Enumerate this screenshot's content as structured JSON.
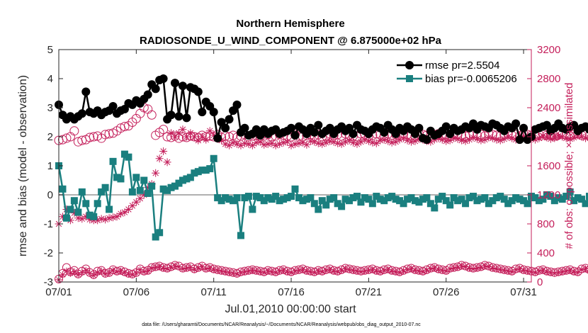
{
  "colors": {
    "rmse": "#000000",
    "bias": "#1a7f7f",
    "obs": "#c41e5a",
    "zero": "#b0b0b0",
    "axis": "#262626"
  },
  "chart_data": {
    "type": "line",
    "title_line1": "Northern Hemisphere",
    "title_line2": "RADIOSONDE_U_WIND_COMPONENT @ 6.875000e+02 hPa",
    "xlabel": "Jul.01,2010 00:00:00 start",
    "ylabel": "rmse and bias (model - observation)",
    "ylabel_right": "# of obs: o=possible; ×=assimilated",
    "ylim": [
      -3,
      5
    ],
    "ylim_right": [
      0,
      3200
    ],
    "xlim": [
      0,
      30.5
    ],
    "x_ticks": [
      0,
      5,
      10,
      15,
      20,
      25,
      30
    ],
    "x_tick_labels": [
      "07/01",
      "07/06",
      "07/11",
      "07/16",
      "07/21",
      "07/26",
      "07/31"
    ],
    "y_ticks": [
      -3,
      -2,
      -1,
      0,
      1,
      2,
      3,
      4,
      5
    ],
    "y_tick_labels": [
      "-3",
      "-2",
      "-1",
      "0",
      "1",
      "2",
      "3",
      "4",
      "5"
    ],
    "y_ticks_right": [
      0,
      400,
      800,
      1200,
      1600,
      2000,
      2400,
      2800,
      3200
    ],
    "y_tick_labels_right": [
      "0",
      "400",
      "800",
      "1200",
      "1600",
      "2000",
      "2400",
      "2800",
      "3200"
    ],
    "legend": [
      {
        "name": "rmse",
        "label": "rmse pr=2.5504"
      },
      {
        "name": "bias",
        "label": "bias pr=-0.0065206"
      }
    ],
    "x_step_days": 0.25,
    "series": [
      {
        "name": "rmse",
        "axis": "left",
        "marker": "filled-circle",
        "values": [
          3.1,
          2.75,
          2.6,
          2.7,
          2.6,
          2.7,
          2.8,
          3.55,
          2.85,
          2.8,
          2.9,
          2.75,
          2.85,
          2.9,
          3.05,
          2.8,
          2.9,
          2.95,
          3.15,
          3.1,
          3.25,
          3.15,
          3.3,
          3.45,
          3.8,
          3.65,
          3.95,
          4.0,
          2.6,
          2.75,
          3.85,
          2.7,
          3.75,
          2.65,
          3.7,
          3.65,
          3.55,
          2.85,
          3.2,
          3.05,
          2.85,
          1.95,
          2.5,
          2.3,
          2.6,
          2.9,
          3.1,
          2.15,
          2.3,
          2.05,
          2.1,
          2.25,
          2.05,
          2.25,
          2.1,
          2.2,
          2.25,
          2.1,
          2.15,
          2.2,
          2.3,
          2.05,
          2.35,
          2.25,
          2.1,
          2.3,
          2.15,
          2.4,
          2.1,
          2.2,
          2.3,
          2.1,
          2.25,
          2.35,
          2.2,
          2.3,
          2.1,
          2.4,
          2.25,
          2.2,
          2.1,
          2.25,
          2.35,
          2.3,
          2.15,
          2.4,
          2.25,
          2.1,
          2.3,
          2.2,
          2.35,
          2.25,
          2.1,
          2.3,
          1.95,
          1.9,
          2.2,
          2.05,
          2.1,
          2.2,
          2.35,
          2.1,
          2.3,
          2.2,
          2.25,
          2.35,
          2.3,
          2.45,
          2.25,
          2.4,
          2.35,
          2.3,
          2.45,
          2.4,
          2.3,
          2.2,
          2.35,
          2.3,
          2.45,
          1.9,
          2.3,
          1.9,
          2.0,
          2.25,
          2.3,
          2.35,
          2.4,
          2.2,
          2.3,
          2.45,
          2.3,
          2.25,
          2.35,
          2.4,
          2.2,
          2.3,
          2.35,
          2.25,
          2.3,
          2.15,
          2.2,
          2.35,
          2.3,
          2.25,
          2.35,
          2.4,
          2.25,
          2.3,
          2.4,
          2.3,
          2.2,
          2.35,
          2.3,
          2.1,
          2.25,
          2.3,
          2.35,
          2.25,
          2.3,
          2.25,
          2.15,
          2.3,
          2.25,
          2.2,
          2.35,
          2.25,
          2.3,
          2.3,
          2.25,
          2.1,
          2.3,
          2.25,
          2.2
        ]
      },
      {
        "name": "bias",
        "axis": "left",
        "marker": "filled-square",
        "values": [
          1.0,
          0.2,
          -0.8,
          -0.5,
          -0.2,
          -0.6,
          0.1,
          -0.3,
          -0.7,
          -0.75,
          -0.3,
          0.1,
          0.25,
          -0.5,
          1.15,
          0.6,
          0.55,
          1.4,
          1.3,
          0.1,
          0.6,
          0.15,
          0.5,
          0.05,
          0.3,
          -1.45,
          -1.3,
          0.2,
          0.15,
          0.25,
          0.3,
          0.4,
          0.5,
          0.55,
          0.6,
          0.75,
          0.8,
          0.85,
          0.85,
          0.9,
          1.25,
          -0.1,
          -0.2,
          -0.1,
          -0.15,
          -0.2,
          -0.1,
          -1.4,
          -0.1,
          -0.05,
          -0.5,
          -0.05,
          -0.1,
          -0.2,
          -0.1,
          -0.15,
          -0.05,
          -0.2,
          -0.15,
          -0.1,
          -0.05,
          0.2,
          -0.1,
          -0.2,
          -0.15,
          -0.1,
          -0.3,
          -0.5,
          -0.2,
          -0.35,
          -0.15,
          -0.1,
          -0.3,
          -0.4,
          -0.15,
          -0.2,
          -0.1,
          -0.05,
          -0.25,
          -0.1,
          -0.15,
          -0.3,
          -0.05,
          -0.15,
          -0.2,
          -0.1,
          -0.05,
          -0.15,
          -0.2,
          -0.3,
          -0.15,
          -0.1,
          -0.2,
          -0.25,
          -0.15,
          -0.1,
          -0.3,
          -0.45,
          -0.15,
          -0.05,
          -0.2,
          -0.35,
          -0.1,
          -0.2,
          -0.15,
          -0.3,
          -0.1,
          -0.05,
          -0.2,
          -0.15,
          -0.1,
          -0.3,
          -0.2,
          -0.1,
          -0.05,
          -0.15,
          -0.3,
          -0.2,
          -0.1,
          -0.15,
          -0.2,
          -0.3,
          -0.05,
          -0.1,
          -0.2,
          -0.15,
          0.0,
          -0.05,
          -0.2,
          -0.1,
          -0.15,
          -0.05,
          0.1,
          -0.2,
          -0.1,
          -0.15,
          -0.3,
          -0.05,
          -0.15,
          -0.1,
          0.0,
          0.35,
          -0.1,
          -0.25,
          -0.1,
          -0.2,
          -0.15,
          -0.05,
          -0.1,
          -0.3,
          -0.15,
          -0.25,
          -0.05,
          -0.15,
          -0.1,
          -0.2,
          -0.5,
          -0.15,
          -0.2,
          -0.05,
          0.1,
          0.15,
          -0.05,
          -0.1,
          -0.2,
          -0.1,
          -0.5,
          0.2,
          0.35,
          0.0,
          0.1,
          0.05,
          0.0,
          -0.05,
          -0.1,
          -0.15
        ]
      },
      {
        "name": "obs_possible",
        "axis": "right",
        "marker": "open-circle",
        "values": [
          1950,
          1960,
          1980,
          2000,
          2080,
          1930,
          1950,
          1960,
          1990,
          2000,
          2010,
          1980,
          2030,
          2040,
          2050,
          2080,
          2120,
          2140,
          2150,
          2200,
          2250,
          2320,
          2400,
          2380,
          2300,
          2020,
          2060,
          2100,
          2000,
          1990,
          2010,
          1980,
          2000,
          1990,
          2010,
          2000,
          1990,
          2020,
          2000,
          2010,
          2000,
          2030,
          1990,
          2010,
          2000,
          2020,
          1990,
          2010,
          2030,
          2000,
          2010,
          2020,
          2000,
          2010,
          2030,
          2000,
          2010,
          2030,
          2020,
          2010,
          2000,
          2030,
          2010,
          2000,
          2020,
          2030,
          2010,
          2030,
          2000,
          2010,
          2040,
          2020,
          2030,
          2010,
          2040,
          2020,
          2010,
          2000,
          2040,
          2030,
          2010,
          2020,
          2040,
          2030,
          2010,
          2040,
          2020,
          2030,
          2010,
          2040,
          2030,
          2020,
          2010,
          2040,
          2030,
          2020,
          2010,
          2030,
          2040,
          2020,
          2030,
          2010,
          2040,
          2030,
          2020,
          2010,
          2030,
          2040,
          2020,
          2030,
          2010,
          2040,
          2030,
          2020,
          2010,
          2030,
          2040,
          2020,
          2030,
          2010,
          2040,
          2030,
          2020,
          2010,
          2030,
          2040,
          2020,
          2030,
          2010,
          2040,
          2030,
          2020,
          2010,
          2030,
          2040,
          2020,
          2030,
          2010,
          2040,
          2030,
          2020,
          2010,
          2030,
          2040,
          2020,
          2030,
          2010,
          2040,
          2030,
          2020,
          2010,
          2030,
          2040,
          2020,
          2030,
          2010,
          2040,
          2030,
          2020,
          2010,
          2030,
          2040,
          2020,
          2030,
          2010,
          2040,
          2030,
          2020,
          2010,
          2030,
          2040,
          2020,
          2030,
          2010,
          2040,
          2030,
          2020
        ]
      },
      {
        "name": "obs_assimilated",
        "axis": "right",
        "marker": "asterisk",
        "values": [
          800,
          900,
          1000,
          850,
          950,
          880,
          870,
          900,
          860,
          850,
          850,
          870,
          860,
          880,
          890,
          900,
          940,
          960,
          1000,
          1050,
          1100,
          1150,
          1200,
          1300,
          1350,
          1500,
          1700,
          1800,
          1650,
          2050,
          2000,
          2050,
          2100,
          2000,
          2050,
          2000,
          1950,
          2000,
          1960,
          2080,
          2020,
          1970,
          1950,
          1900,
          1880,
          1920,
          1900,
          1880,
          1910,
          1900,
          1880,
          1920,
          1930,
          1890,
          1900,
          1910,
          1880,
          1900,
          1920,
          1930,
          1880,
          1900,
          1910,
          1920,
          1890,
          1940,
          1930,
          1910,
          1900,
          1920,
          1940,
          1930,
          1910,
          1900,
          1930,
          1950,
          1920,
          1900,
          1930,
          1960,
          1940,
          1920,
          1910,
          1950,
          1960,
          1940,
          1920,
          1930,
          1960,
          1980,
          1950,
          1930,
          1940,
          1970,
          1960,
          1940,
          1930,
          1960,
          1980,
          1960,
          1940,
          1950,
          1980,
          1970,
          1950,
          1940,
          1960,
          1990,
          1970,
          1950,
          1960,
          1990,
          1980,
          1960,
          1950,
          1970,
          2000,
          1980,
          1960,
          1970,
          2000,
          1990,
          1970,
          1960,
          1980,
          2010,
          1990,
          1970,
          1980,
          2010,
          2000,
          1980,
          1970,
          1990,
          2020,
          2000,
          1980,
          1990,
          2020,
          2010,
          1990,
          1980,
          2000,
          2030,
          2010,
          1990,
          2000,
          2030,
          2020,
          2000,
          1990,
          2010,
          2040,
          2020,
          2000,
          2010,
          2040,
          2030,
          2010,
          2000,
          2020,
          2050,
          2030,
          2010,
          2020,
          2050,
          2040,
          2020,
          2010,
          2030,
          1960,
          1980,
          1990,
          2000,
          2010,
          2020
        ]
      },
      {
        "name": "obs_possible_low",
        "axis": "right",
        "marker": "open-circle",
        "values": [
          40,
          120,
          200,
          140,
          160,
          110,
          150,
          180,
          130,
          100,
          150,
          160,
          120,
          130,
          170,
          150,
          160,
          140,
          120,
          110,
          130,
          180,
          150,
          160,
          200,
          210,
          220,
          200,
          190,
          210,
          230,
          220,
          190,
          200,
          210,
          180,
          200,
          220,
          190,
          200,
          180,
          170,
          160,
          150,
          140,
          130,
          120,
          140,
          150,
          160,
          170,
          160,
          150,
          140,
          160,
          150,
          140,
          160,
          170,
          150,
          140,
          160,
          170,
          180,
          160,
          150,
          140,
          160,
          150,
          170,
          180,
          160,
          150,
          170,
          190,
          180,
          170,
          160,
          150,
          160,
          170,
          180,
          160,
          150,
          170,
          180,
          160,
          150,
          140,
          160,
          180,
          190,
          170,
          160,
          150,
          170,
          190,
          200,
          180,
          170,
          160,
          190,
          200,
          210,
          230,
          220,
          200,
          190,
          200,
          210,
          230,
          220,
          200,
          190,
          180,
          170,
          160,
          150,
          180,
          190,
          170,
          160,
          150,
          140,
          160,
          170,
          150,
          140,
          130,
          140,
          150,
          160,
          170,
          150,
          140,
          180,
          190,
          170,
          160,
          150,
          170,
          180,
          160,
          150,
          140,
          160,
          170,
          180,
          160,
          150,
          170,
          160,
          150,
          140,
          130,
          140,
          150,
          160,
          150,
          140,
          130,
          140,
          150,
          160,
          150,
          140,
          150,
          160,
          150,
          140
        ]
      },
      {
        "name": "obs_assimilated_low",
        "axis": "right",
        "marker": "asterisk",
        "values": [
          30,
          100,
          150,
          120,
          140,
          100,
          130,
          160,
          120,
          90,
          130,
          150,
          110,
          120,
          160,
          140,
          150,
          130,
          110,
          100,
          120,
          170,
          140,
          150,
          190,
          200,
          210,
          190,
          180,
          200,
          220,
          210,
          180,
          190,
          200,
          170,
          190,
          210,
          180,
          190,
          170,
          160,
          150,
          140,
          130,
          120,
          110,
          130,
          140,
          150,
          160,
          150,
          140,
          130,
          150,
          140,
          130,
          150,
          160,
          140,
          130,
          150,
          160,
          170,
          150,
          140,
          130,
          150,
          140,
          160,
          170,
          150,
          140,
          160,
          180,
          170,
          160,
          150,
          140,
          150,
          160,
          170,
          150,
          140,
          160,
          170,
          150,
          140,
          130,
          150,
          170,
          180,
          160,
          150,
          140,
          160,
          180,
          190,
          170,
          160,
          150,
          180,
          190,
          200,
          220,
          210,
          190,
          180,
          190,
          200,
          220,
          210,
          190,
          180,
          170,
          160,
          150,
          140,
          170,
          180,
          160,
          150,
          140,
          130,
          150,
          160,
          140,
          130,
          120,
          130,
          140,
          150,
          160,
          140,
          130,
          170,
          180,
          160,
          150,
          140,
          160,
          170,
          150,
          140,
          130,
          150,
          160,
          170,
          150,
          140,
          160,
          150,
          140,
          130,
          120,
          130,
          140,
          150,
          140,
          130,
          120,
          130,
          140,
          150,
          140,
          130,
          140,
          150,
          140,
          130
        ]
      }
    ]
  },
  "footnote": "data file: /Users/gharamti/Documents/NCAR/Reanalysis/~/Documents/NCAR/Reanalysis/webpub/obs_diag_output_2010-07.nc"
}
